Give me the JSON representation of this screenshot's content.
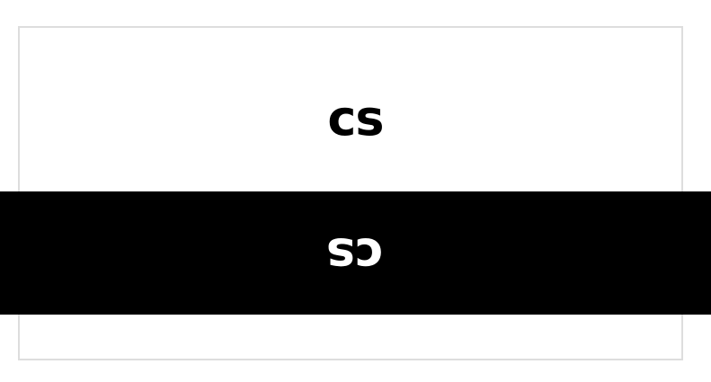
{
  "logo": {
    "text": "cs"
  },
  "colors": {
    "background": "#ffffff",
    "frame_border": "#dddddd",
    "logo_on_light": "#000000",
    "band": "#000000",
    "logo_on_dark": "#ffffff"
  }
}
